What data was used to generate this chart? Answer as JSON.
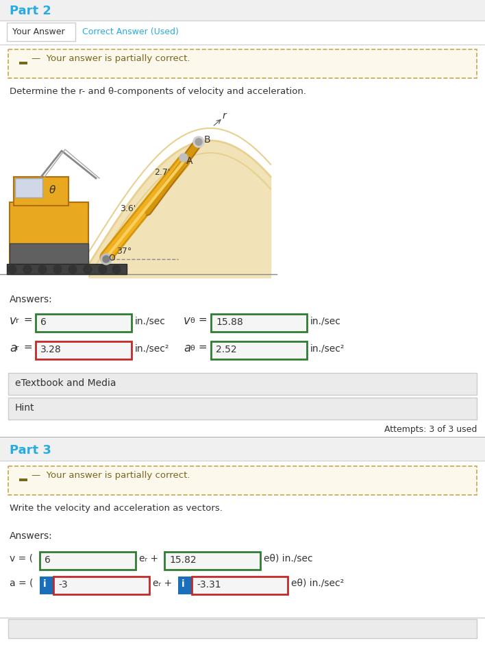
{
  "bg_color": "#f0f0f0",
  "white": "#ffffff",
  "part2_title": "Part 2",
  "part3_title": "Part 3",
  "tab_your_answer": "Your Answer",
  "tab_correct_answer": "Correct Answer (Used)",
  "partial_correct_text": "  Your answer is partially correct.",
  "partial_box_bg": "#fdf8ec",
  "partial_box_border": "#c8a84b",
  "question2_text": "Determine the r- and θ-components of velocity and acceleration.",
  "question3_text": "Write the velocity and acceleration as vectors.",
  "answers_text": "Answers:",
  "vr_value": "6",
  "vr_unit": "in./sec",
  "vtheta_value": "15.88",
  "vtheta_unit": "in./sec",
  "ar_value": "3.28",
  "ar_unit": "in./sec²",
  "atheta_value": "2.52",
  "atheta_unit": "in./sec²",
  "etextbook_text": "eTextbook and Media",
  "hint_text": "Hint",
  "attempts_text": "Attempts: 3 of 3 used",
  "vec_v_er": "6",
  "vec_v_eth": "15.82",
  "vec_a_er": "-3",
  "vec_a_eth": "-3.31",
  "green_border": "#2e7d32",
  "red_border": "#c62828",
  "blue_icon": "#1a6fbb",
  "separator_color": "#cccccc",
  "title_color": "#29abe2",
  "text_color": "#333333",
  "brown_text": "#7a6520",
  "header_bg": "#f0f0f0",
  "content_bg": "#ffffff",
  "box_bg": "#f5f5f5",
  "gray_bar_bg": "#ebebeb"
}
